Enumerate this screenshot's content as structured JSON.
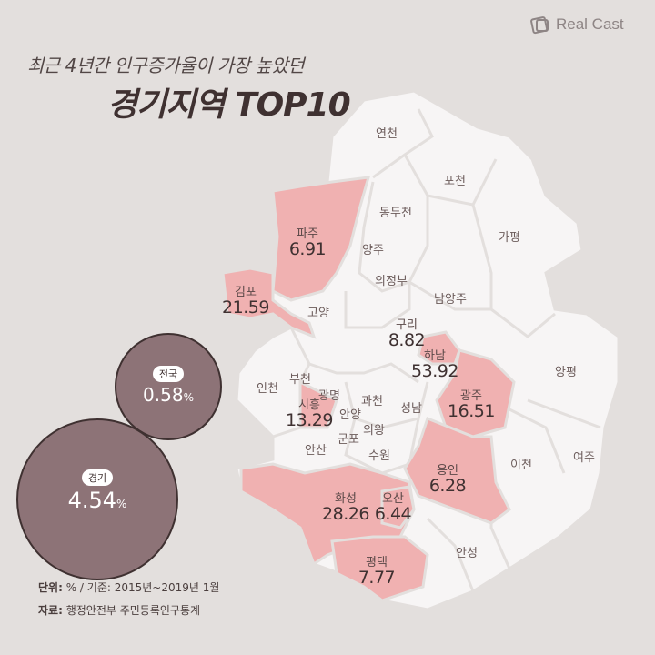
{
  "brand": {
    "name": "Real Cast"
  },
  "header": {
    "subtitle": "최근 4년간 인구증가율이 가장 높았던",
    "title": "경기지역 TOP10"
  },
  "colors": {
    "background": "#e3dfdd",
    "region": "#f7f5f5",
    "highlight": "#f0b1b1",
    "bubble": "#8d7377",
    "text_dark": "#3f3131"
  },
  "regions": [
    {
      "name": "연천"
    },
    {
      "name": "포천"
    },
    {
      "name": "동두천"
    },
    {
      "name": "가평"
    },
    {
      "name": "양주"
    },
    {
      "name": "의정부"
    },
    {
      "name": "남양주"
    },
    {
      "name": "고양"
    },
    {
      "name": "양평"
    },
    {
      "name": "인천"
    },
    {
      "name": "부천"
    },
    {
      "name": "광명"
    },
    {
      "name": "과천"
    },
    {
      "name": "안양"
    },
    {
      "name": "성남"
    },
    {
      "name": "의왕"
    },
    {
      "name": "안산"
    },
    {
      "name": "군포"
    },
    {
      "name": "수원"
    },
    {
      "name": "이천"
    },
    {
      "name": "여주"
    },
    {
      "name": "안성"
    }
  ],
  "top10": [
    {
      "name": "파주",
      "value": "6.91"
    },
    {
      "name": "김포",
      "value": "21.59"
    },
    {
      "name": "구리",
      "value": "8.82"
    },
    {
      "name": "하남",
      "value": "53.92"
    },
    {
      "name": "시흥",
      "value": "13.29"
    },
    {
      "name": "광주",
      "value": "16.51"
    },
    {
      "name": "용인",
      "value": "6.28"
    },
    {
      "name": "화성",
      "value": "28.26"
    },
    {
      "name": "오산",
      "value": "6.44"
    },
    {
      "name": "평택",
      "value": "7.77"
    }
  ],
  "summary": {
    "national": {
      "label": "전국",
      "value": "0.58",
      "unit": "%"
    },
    "gyeonggi": {
      "label": "경기",
      "value": "4.54",
      "unit": "%"
    }
  },
  "footer": {
    "unit_label": "단위:",
    "unit_text": " % / 기준: 2015년~2019년 1월",
    "source_label": "자료:",
    "source_text": " 행정안전부 주민등록인구통계"
  }
}
